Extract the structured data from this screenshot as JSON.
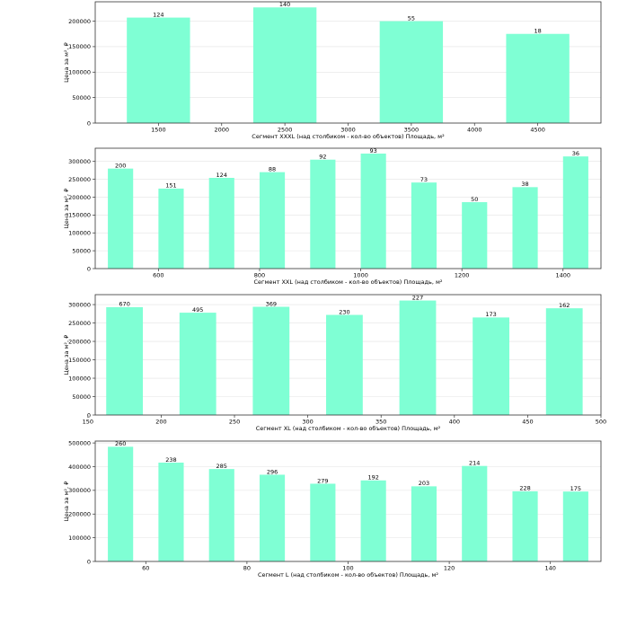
{
  "chart_data": [
    {
      "type": "bar",
      "xlabel": "Сегмент XXXL (над столбиком - кол-во объектов)   Площадь, м²",
      "ylabel": "Цена за м², ₽",
      "x": [
        1500,
        2500,
        3500,
        4500
      ],
      "values": [
        207000,
        227000,
        200000,
        175000
      ],
      "counts": [
        "124",
        "140",
        "55",
        "18"
      ],
      "bar_width": 500,
      "xlim": [
        1000,
        5000
      ],
      "ylim": [
        0,
        238000
      ],
      "xticks": [
        "1500",
        "2000",
        "2500",
        "3000",
        "3500",
        "4000",
        "4500"
      ],
      "yticks": [
        "0",
        "50000",
        "100000",
        "150000",
        "200000"
      ],
      "grid": "y"
    },
    {
      "type": "bar",
      "xlabel": "Сегмент XXL (над столбиком - кол-во объектов)   Площадь, м²",
      "ylabel": "Цена за м², ₽",
      "x": [
        525,
        625,
        725,
        825,
        925,
        1025,
        1125,
        1225,
        1325,
        1425
      ],
      "values": [
        280000,
        224000,
        254000,
        270000,
        305000,
        322000,
        241000,
        186000,
        228000,
        314000
      ],
      "counts": [
        "200",
        "151",
        "124",
        "88",
        "92",
        "93",
        "73",
        "50",
        "38",
        "36"
      ],
      "bar_width": 50,
      "xlim": [
        475,
        1475
      ],
      "ylim": [
        0,
        337000
      ],
      "xticks": [
        "600",
        "800",
        "1000",
        "1200",
        "1400"
      ],
      "yticks": [
        "0",
        "50000",
        "100000",
        "150000",
        "200000",
        "250000",
        "300000"
      ],
      "grid": "y"
    },
    {
      "type": "bar",
      "xlabel": "Сегмент XL (над столбиком - кол-во объектов)   Площадь, м²",
      "ylabel": "Цена за м², ₽",
      "x": [
        175,
        225,
        275,
        325,
        375,
        425,
        475
      ],
      "values": [
        293000,
        278000,
        294000,
        272000,
        311000,
        265000,
        290000
      ],
      "counts": [
        "670",
        "495",
        "369",
        "230",
        "227",
        "173",
        "162"
      ],
      "bar_width": 25,
      "xlim": [
        155,
        500
      ],
      "ylim": [
        0,
        327000
      ],
      "xticks": [
        "150",
        "200",
        "250",
        "300",
        "350",
        "400",
        "450",
        "500"
      ],
      "yticks": [
        "0",
        "50000",
        "100000",
        "150000",
        "200000",
        "250000",
        "300000"
      ],
      "grid": "y"
    },
    {
      "type": "bar",
      "xlabel": "Сегмент L (над столбиком - кол-во объектов)   Площадь, м²",
      "ylabel": "Цена за м², ₽",
      "x": [
        55,
        65,
        75,
        85,
        95,
        105,
        115,
        125,
        135,
        145
      ],
      "values": [
        484000,
        417000,
        390000,
        366000,
        328000,
        342000,
        317000,
        403000,
        296000,
        295000
      ],
      "counts": [
        "260",
        "238",
        "285",
        "296",
        "279",
        "192",
        "203",
        "214",
        "228",
        "175"
      ],
      "bar_width": 5,
      "xlim": [
        50,
        150
      ],
      "ylim": [
        0,
        508000
      ],
      "xticks": [
        "60",
        "80",
        "100",
        "120",
        "140"
      ],
      "yticks": [
        "0",
        "100000",
        "200000",
        "300000",
        "400000",
        "500000"
      ],
      "grid": "y"
    }
  ],
  "colors": {
    "bar": "#7fffd4",
    "grid": "#e3e3e3",
    "axis": "#333333"
  }
}
